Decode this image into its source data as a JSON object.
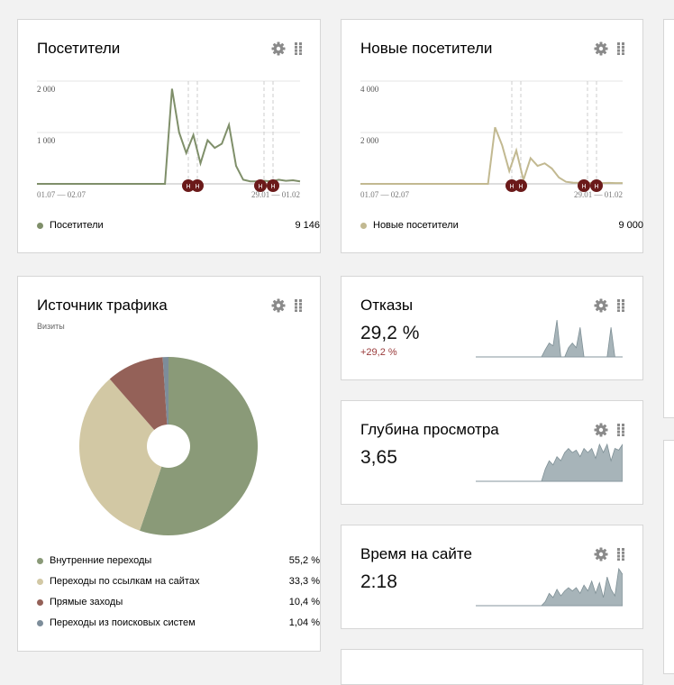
{
  "colors": {
    "visitors": "#7f8f6a",
    "new_visitors": "#c2b991",
    "internal": "#8a9a78",
    "links": "#d2c8a4",
    "direct": "#946158",
    "search": "#7d8d9a",
    "spark": "#a7b4b9",
    "marker": "#6b1a1a"
  },
  "icons": {
    "settings": "gear-icon",
    "drag": "grid-handle-icon",
    "annotation": "note-marker-icon"
  },
  "visitors": {
    "title": "Посетители",
    "y_ticks": [
      "2 000",
      "1 000"
    ],
    "date_left": "01.07 — 02.07",
    "date_right": "29.01 — 01.02",
    "marker_letter": "Н",
    "legend_label": "Посетители",
    "legend_value": "9 146"
  },
  "new_visitors": {
    "title": "Новые посетители",
    "y_ticks": [
      "4 000",
      "2 000"
    ],
    "date_left": "01.07 — 02.07",
    "date_right": "29.01 — 01.02",
    "marker_letter": "Н",
    "legend_label": "Новые посетители",
    "legend_value": "9 000"
  },
  "traffic": {
    "title": "Источник трафика",
    "subtitle": "Визиты",
    "items": [
      {
        "label": "Внутренние переходы",
        "value": "55,2 %"
      },
      {
        "label": "Переходы по ссылкам на сайтах",
        "value": "33,3 %"
      },
      {
        "label": "Прямые заходы",
        "value": "10,4 %"
      },
      {
        "label": "Переходы из поисковых систем",
        "value": "1,04 %"
      }
    ]
  },
  "bounce": {
    "title": "Отказы",
    "value": "29,2 %",
    "delta": "+29,2 %"
  },
  "depth": {
    "title": "Глубина просмотра",
    "value": "3,65"
  },
  "time": {
    "title": "Время на сайте",
    "value": "2:18"
  },
  "chart_data": [
    {
      "type": "line",
      "title": "Посетители",
      "ylim": [
        0,
        2000
      ],
      "y_ticks": [
        1000,
        2000
      ],
      "series": [
        {
          "name": "Посетители",
          "values": [
            0,
            0,
            0,
            0,
            0,
            0,
            0,
            0,
            0,
            0,
            0,
            0,
            0,
            0,
            0,
            0,
            0,
            0,
            0,
            1850,
            1000,
            600,
            950,
            400,
            850,
            700,
            780,
            1150,
            350,
            80,
            50,
            50,
            60,
            50,
            80,
            60,
            70,
            50
          ]
        }
      ]
    },
    {
      "type": "line",
      "title": "Новые посетители",
      "ylim": [
        0,
        4000
      ],
      "y_ticks": [
        2000,
        4000
      ],
      "series": [
        {
          "name": "Новые посетители",
          "values": [
            0,
            0,
            0,
            0,
            0,
            0,
            0,
            0,
            0,
            0,
            0,
            0,
            0,
            0,
            0,
            0,
            0,
            0,
            0,
            2200,
            1500,
            500,
            1300,
            150,
            1000,
            700,
            800,
            600,
            250,
            80,
            50,
            40,
            30,
            40,
            30,
            40,
            30,
            30
          ]
        }
      ]
    },
    {
      "type": "pie",
      "title": "Источник трафика",
      "categories": [
        "Внутренние переходы",
        "Переходы по ссылкам на сайтах",
        "Прямые заходы",
        "Переходы из поисковых систем"
      ],
      "values": [
        55.2,
        33.3,
        10.4,
        1.04
      ]
    },
    {
      "type": "area",
      "title": "Отказы",
      "values": [
        0,
        0,
        0,
        0,
        0,
        0,
        0,
        0,
        0,
        0,
        0,
        0,
        0,
        0,
        0,
        0,
        0,
        0,
        8,
        15,
        12,
        40,
        0,
        0,
        10,
        15,
        10,
        32,
        0,
        0,
        0,
        0,
        0,
        0,
        0,
        32,
        0,
        0,
        0
      ]
    },
    {
      "type": "area",
      "title": "Глубина просмотра",
      "values": [
        0,
        0,
        0,
        0,
        0,
        0,
        0,
        0,
        0,
        0,
        0,
        0,
        0,
        0,
        0,
        0,
        0,
        0,
        15,
        25,
        20,
        30,
        25,
        35,
        40,
        35,
        38,
        30,
        40,
        35,
        40,
        28,
        45,
        35,
        45,
        25,
        40,
        38,
        45
      ]
    },
    {
      "type": "area",
      "title": "Время на сайте",
      "values": [
        0,
        0,
        0,
        0,
        0,
        0,
        0,
        0,
        0,
        0,
        0,
        0,
        0,
        0,
        0,
        0,
        0,
        0,
        5,
        15,
        10,
        20,
        12,
        18,
        22,
        18,
        22,
        15,
        25,
        18,
        30,
        15,
        28,
        10,
        35,
        20,
        12,
        45,
        38
      ]
    }
  ]
}
